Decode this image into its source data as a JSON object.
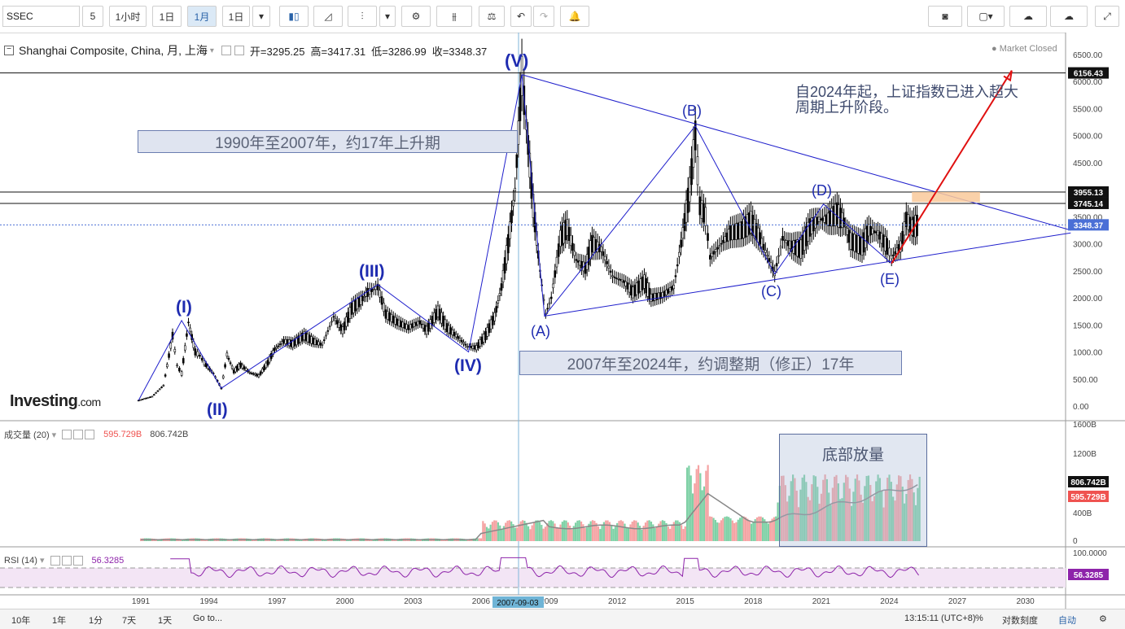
{
  "toolbar": {
    "symbol": "SSEC",
    "intervals": [
      "5",
      "1小时",
      "1日",
      "1月",
      "1日"
    ],
    "active_interval": "1月"
  },
  "legend": {
    "title": "Shanghai Composite, China, 月, 上海",
    "open_label": "开=3295.25",
    "high_label": "高=3417.31",
    "low_label": "低=3286.99",
    "close_label": "收=3348.37",
    "market_status": "Market Closed"
  },
  "logo": {
    "main": "Investing",
    "suffix": ".com"
  },
  "annotations": {
    "box1": "1990年至2007年，约17年上升期",
    "box2": "2007年至2024年，约调整期（修正）17年",
    "note": "自2024年起，上证指数已进入超大周期上升阶段。",
    "volume_box": "底部放量",
    "waves": [
      "(I)",
      "(II)",
      "(III)",
      "(IV)",
      "(V)",
      "(A)",
      "(B)",
      "(C)",
      "(D)",
      "(E)"
    ]
  },
  "volume_legend": {
    "name": "成交量 (20)",
    "v1": "595.729B",
    "v2": "806.742B"
  },
  "rsi_legend": {
    "name": "RSI (14)",
    "value": "56.3285"
  },
  "price_badges": {
    "top": "6156.43",
    "b1": "3955.13",
    "b2": "3745.14",
    "last": "3348.37"
  },
  "volume_badges": {
    "a": "806.742B",
    "b": "595.729B"
  },
  "rsi_badge": "56.3285",
  "crosshair_date": "2007-09-03",
  "bottom": {
    "ranges": [
      "10年",
      "1年",
      "1分",
      "7天",
      "1天"
    ],
    "goto": "Go to...",
    "time": "13:15:11 (UTC+8)",
    "pct": "%",
    "log": "对数刻度",
    "auto": "自动"
  },
  "colors": {
    "up": "#26a69a",
    "down": "#ef5350",
    "wave": "#1f1fcc",
    "arrow": "#e01010",
    "rsi": "#8e24aa"
  },
  "chart_data": {
    "type": "line",
    "title": "Shanghai Composite, China, 月, 上海",
    "x_ticks": [
      "1991",
      "1994",
      "1997",
      "2000",
      "2003",
      "2006",
      "2009",
      "2012",
      "2015",
      "2018",
      "2021",
      "2024",
      "2027",
      "2030"
    ],
    "y_ticks": [
      "6500.00",
      "6000.00",
      "5500.00",
      "5000.00",
      "4500.00",
      "4000.00",
      "3500.00",
      "3000.00",
      "2500.00",
      "2000.00",
      "1500.00",
      "1000.00",
      "500.00",
      "0.00"
    ],
    "ylim": [
      0,
      6500
    ],
    "series": [
      {
        "points": [
          [
            1990.9,
            105
          ],
          [
            1991.5,
            180
          ],
          [
            1992.0,
            380
          ],
          [
            1992.4,
            1300
          ],
          [
            1992.6,
            750
          ],
          [
            1992.8,
            600
          ],
          [
            1993.1,
            1550
          ],
          [
            1993.4,
            1000
          ],
          [
            1993.6,
            930
          ],
          [
            1993.8,
            800
          ],
          [
            1994.2,
            600
          ],
          [
            1994.55,
            330
          ],
          [
            1994.8,
            950
          ],
          [
            1995.1,
            640
          ],
          [
            1995.4,
            760
          ],
          [
            1995.8,
            620
          ],
          [
            1996.2,
            560
          ],
          [
            1996.6,
            800
          ],
          [
            1996.9,
            1050
          ],
          [
            1997.3,
            1200
          ],
          [
            1997.7,
            1150
          ],
          [
            1998.2,
            1300
          ],
          [
            1998.6,
            1200
          ],
          [
            1999.0,
            1130
          ],
          [
            1999.5,
            1650
          ],
          [
            1999.9,
            1400
          ],
          [
            2000.3,
            1800
          ],
          [
            2000.7,
            1950
          ],
          [
            2001.0,
            2100
          ],
          [
            2001.45,
            2200
          ],
          [
            2001.8,
            1700
          ],
          [
            2002.3,
            1550
          ],
          [
            2002.8,
            1450
          ],
          [
            2003.3,
            1550
          ],
          [
            2003.6,
            1400
          ],
          [
            2004.1,
            1750
          ],
          [
            2004.5,
            1450
          ],
          [
            2004.9,
            1300
          ],
          [
            2005.4,
            1100
          ],
          [
            2005.8,
            1080
          ],
          [
            2006.2,
            1300
          ],
          [
            2006.6,
            1650
          ],
          [
            2006.9,
            2200
          ],
          [
            2007.2,
            3000
          ],
          [
            2007.5,
            4000
          ],
          [
            2007.8,
            6100
          ],
          [
            2008.0,
            5200
          ],
          [
            2008.3,
            3700
          ],
          [
            2008.6,
            2500
          ],
          [
            2008.85,
            1700
          ],
          [
            2009.1,
            2000
          ],
          [
            2009.5,
            3100
          ],
          [
            2009.8,
            3300
          ],
          [
            2010.2,
            2700
          ],
          [
            2010.6,
            2550
          ],
          [
            2010.9,
            3000
          ],
          [
            2011.3,
            2900
          ],
          [
            2011.8,
            2400
          ],
          [
            2012.3,
            2300
          ],
          [
            2012.7,
            2100
          ],
          [
            2013.2,
            2300
          ],
          [
            2013.5,
            2000
          ],
          [
            2014.0,
            2050
          ],
          [
            2014.5,
            2200
          ],
          [
            2014.9,
            3200
          ],
          [
            2015.2,
            4000
          ],
          [
            2015.45,
            5000
          ],
          [
            2015.65,
            3700
          ],
          [
            2015.9,
            3500
          ],
          [
            2016.1,
            2750
          ],
          [
            2016.6,
            3000
          ],
          [
            2017.0,
            3200
          ],
          [
            2017.5,
            3250
          ],
          [
            2017.9,
            3400
          ],
          [
            2018.3,
            3100
          ],
          [
            2018.7,
            2700
          ],
          [
            2018.95,
            2450
          ],
          [
            2019.3,
            3100
          ],
          [
            2019.7,
            2950
          ],
          [
            2020.1,
            2900
          ],
          [
            2020.5,
            3300
          ],
          [
            2020.9,
            3450
          ],
          [
            2021.3,
            3450
          ],
          [
            2021.7,
            3550
          ],
          [
            2022.0,
            3400
          ],
          [
            2022.3,
            3050
          ],
          [
            2022.8,
            2950
          ],
          [
            2023.1,
            3250
          ],
          [
            2023.5,
            3200
          ],
          [
            2023.9,
            2950
          ],
          [
            2024.1,
            2750
          ],
          [
            2024.5,
            2950
          ],
          [
            2024.75,
            3450
          ],
          [
            2025.0,
            3300
          ],
          [
            2025.3,
            3350
          ]
        ]
      }
    ],
    "wave_points": [
      [
        1990.9,
        105
      ],
      [
        1992.8,
        1580
      ],
      [
        1994.55,
        330
      ],
      [
        2001.45,
        2245
      ],
      [
        2005.45,
        1000
      ],
      [
        2007.8,
        6124
      ],
      [
        2008.8,
        1664
      ],
      [
        2015.45,
        5178
      ],
      [
        2018.95,
        2440
      ],
      [
        2021.1,
        3731
      ],
      [
        2024.1,
        2635
      ]
    ],
    "horizontal_levels": [
      6156.43,
      3955.13,
      3745.14
    ],
    "triangle_lines": [
      [
        [
          2007.8,
          6124
        ],
        [
          2032.0,
          3250
        ]
      ],
      [
        [
          2008.8,
          1664
        ],
        [
          2032.0,
          3200
        ]
      ]
    ],
    "forecast_arrow": [
      [
        2024.1,
        2635
      ],
      [
        2029.4,
        6200
      ]
    ],
    "volume_ticks": [
      "1600B",
      "1200B",
      "806.742B",
      "595.729B",
      "400B",
      "0"
    ],
    "rsi_ticks": [
      "100.0000",
      "56.3285"
    ]
  }
}
